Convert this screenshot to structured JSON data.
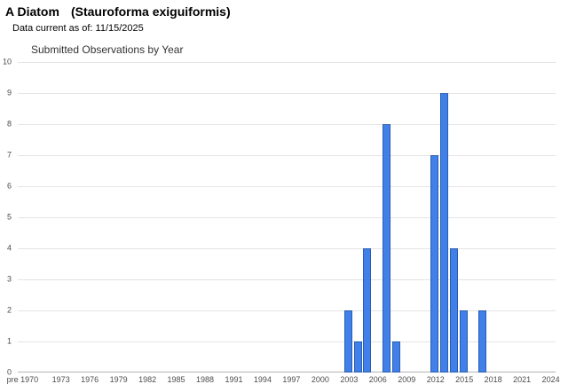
{
  "header": {
    "common_name": "A Diatom",
    "scientific_name": "(Stauroforma exiguiformis)",
    "data_current_text": "Data current as of: 11/15/2025"
  },
  "chart_data": {
    "type": "bar",
    "title": "Submitted Observations by Year",
    "xlabel": "",
    "ylabel": "",
    "x_axis": {
      "first_category": "pre 1970",
      "year_start": 1970,
      "year_end": 2024,
      "tick_labels": [
        "pre 1970",
        "1973",
        "1976",
        "1979",
        "1982",
        "1985",
        "1988",
        "1991",
        "1994",
        "1997",
        "2000",
        "2003",
        "2006",
        "2009",
        "2012",
        "2015",
        "2018",
        "2021",
        "2024"
      ]
    },
    "y_axis": {
      "min": 0,
      "max": 10,
      "tick_interval": 1
    },
    "points": [
      {
        "year": 2003,
        "value": 2
      },
      {
        "year": 2004,
        "value": 1
      },
      {
        "year": 2005,
        "value": 4
      },
      {
        "year": 2007,
        "value": 8
      },
      {
        "year": 2008,
        "value": 1
      },
      {
        "year": 2012,
        "value": 7
      },
      {
        "year": 2013,
        "value": 9
      },
      {
        "year": 2014,
        "value": 4
      },
      {
        "year": 2015,
        "value": 2
      },
      {
        "year": 2017,
        "value": 2
      }
    ],
    "grid": true,
    "legend": "none",
    "bar_color": "#4080e8",
    "bar_border_color": "#2a5db0"
  }
}
